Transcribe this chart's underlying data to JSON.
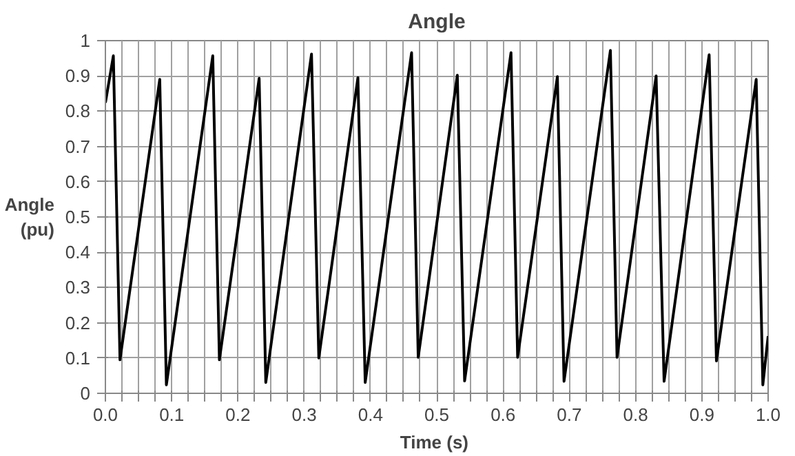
{
  "chart_data": {
    "type": "line",
    "title": "Angle",
    "xlabel": "Time  (s)",
    "ylabel": "Angle\n(pu)",
    "x": [
      0.0,
      0.012,
      0.022,
      0.082,
      0.092,
      0.162,
      0.172,
      0.232,
      0.242,
      0.311,
      0.322,
      0.381,
      0.392,
      0.462,
      0.472,
      0.531,
      0.542,
      0.612,
      0.622,
      0.682,
      0.692,
      0.762,
      0.772,
      0.831,
      0.843,
      0.911,
      0.922,
      0.982,
      0.992,
      1.0
    ],
    "series": [
      {
        "color": "#000000",
        "values": [
          0.824,
          0.957,
          0.095,
          0.89,
          0.024,
          0.957,
          0.095,
          0.893,
          0.031,
          0.962,
          0.1,
          0.895,
          0.031,
          0.966,
          0.102,
          0.902,
          0.035,
          0.966,
          0.102,
          0.898,
          0.034,
          0.972,
          0.102,
          0.9,
          0.034,
          0.96,
          0.092,
          0.89,
          0.024,
          0.162
        ]
      }
    ],
    "xlim": [
      0,
      1
    ],
    "ylim": [
      0,
      1
    ],
    "xticks": [
      {
        "value": 0,
        "label": "0.0"
      },
      {
        "value": 0.025,
        "label": null
      },
      {
        "value": 0.05,
        "label": null
      },
      {
        "value": 0.075,
        "label": null
      },
      {
        "value": 0.1,
        "label": "0.1"
      },
      {
        "value": 0.125,
        "label": null
      },
      {
        "value": 0.15,
        "label": null
      },
      {
        "value": 0.175,
        "label": null
      },
      {
        "value": 0.2,
        "label": "0.2"
      },
      {
        "value": 0.225,
        "label": null
      },
      {
        "value": 0.25,
        "label": null
      },
      {
        "value": 0.275,
        "label": null
      },
      {
        "value": 0.3,
        "label": "0.3"
      },
      {
        "value": 0.325,
        "label": null
      },
      {
        "value": 0.35,
        "label": null
      },
      {
        "value": 0.375,
        "label": null
      },
      {
        "value": 0.4,
        "label": "0.4"
      },
      {
        "value": 0.425,
        "label": null
      },
      {
        "value": 0.45,
        "label": null
      },
      {
        "value": 0.475,
        "label": null
      },
      {
        "value": 0.5,
        "label": "0.5"
      },
      {
        "value": 0.525,
        "label": null
      },
      {
        "value": 0.55,
        "label": null
      },
      {
        "value": 0.575,
        "label": null
      },
      {
        "value": 0.6,
        "label": "0.6"
      },
      {
        "value": 0.625,
        "label": null
      },
      {
        "value": 0.65,
        "label": null
      },
      {
        "value": 0.675,
        "label": null
      },
      {
        "value": 0.7,
        "label": "0.7"
      },
      {
        "value": 0.725,
        "label": null
      },
      {
        "value": 0.75,
        "label": null
      },
      {
        "value": 0.775,
        "label": null
      },
      {
        "value": 0.8,
        "label": "0.8"
      },
      {
        "value": 0.825,
        "label": null
      },
      {
        "value": 0.85,
        "label": null
      },
      {
        "value": 0.875,
        "label": null
      },
      {
        "value": 0.9,
        "label": "0.9"
      },
      {
        "value": 0.925,
        "label": null
      },
      {
        "value": 0.95,
        "label": null
      },
      {
        "value": 0.975,
        "label": null
      },
      {
        "value": 1,
        "label": "1.0"
      }
    ],
    "yticks": [
      0,
      0.1,
      0.2,
      0.3,
      0.4,
      0.5,
      0.6,
      0.7,
      0.8,
      0.9,
      1
    ],
    "grid": true,
    "marker": "none",
    "line_style": "solid"
  }
}
